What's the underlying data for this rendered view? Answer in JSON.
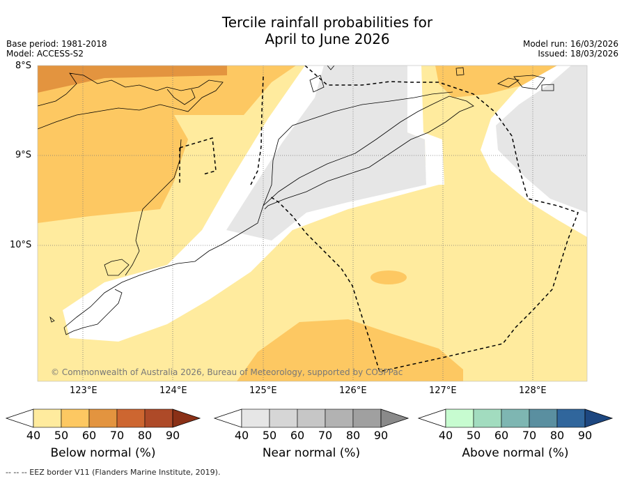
{
  "title_line1": "Tercile rainfall probabilities for",
  "title_line2": "April to June 2026",
  "base_period": "Base period: 1981-2018",
  "model": "Model: ACCESS-S2",
  "model_run": "Model run: 16/03/2026",
  "issued": "Issued: 18/03/2026",
  "lat_labels": [
    "8°S",
    "9°S",
    "10°S"
  ],
  "lon_labels": [
    "123°E",
    "124°E",
    "125°E",
    "126°E",
    "127°E",
    "128°E"
  ],
  "copyright": "© Commonwealth of Australia 2026, Bureau of Meteorology, supported by COSPPac",
  "colorbars": {
    "below": {
      "label": "Below normal (%)",
      "ticks": [
        "40",
        "50",
        "60",
        "70",
        "80",
        "90"
      ],
      "colors": [
        "#ffffff",
        "#ffeb9e",
        "#fdc862",
        "#e3943f",
        "#cd6630",
        "#ae4a28",
        "#8a3016"
      ]
    },
    "near": {
      "label": "Near normal (%)",
      "ticks": [
        "40",
        "50",
        "60",
        "70",
        "80",
        "90"
      ],
      "colors": [
        "#ffffff",
        "#e6e6e6",
        "#d6d6d6",
        "#c6c6c6",
        "#b2b2b2",
        "#a0a0a0",
        "#8a8a8a"
      ]
    },
    "above": {
      "label": "Above normal (%)",
      "ticks": [
        "40",
        "50",
        "60",
        "70",
        "80",
        "90"
      ],
      "colors": [
        "#ffffff",
        "#c7fcd0",
        "#a2dcbf",
        "#7eb6b2",
        "#5a8fa0",
        "#30669c",
        "#1d4780"
      ]
    }
  },
  "footer": "--  --  -- EEZ border V11 (Flanders Marine Institute, 2019)."
}
